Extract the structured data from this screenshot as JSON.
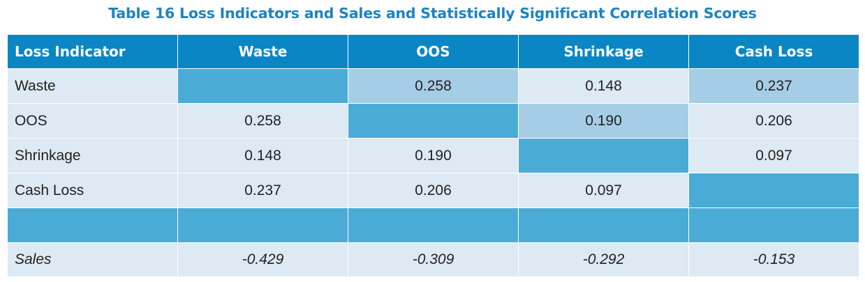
{
  "table": {
    "caption": "Table 16 Loss Indicators and Sales and Statistically Significant Correlation Scores",
    "headers": [
      "Loss Indicator",
      "Waste",
      "OOS",
      "Shrinkage",
      "Cash Loss"
    ],
    "rows": [
      {
        "label": "Waste",
        "values": [
          "",
          "0.258",
          "0.148",
          "0.237"
        ]
      },
      {
        "label": "OOS",
        "values": [
          "0.258",
          "",
          "0.190",
          "0.206"
        ]
      },
      {
        "label": "Shrinkage",
        "values": [
          "0.148",
          "0.190",
          "",
          "0.097"
        ]
      },
      {
        "label": "Cash Loss",
        "values": [
          "0.237",
          "0.206",
          "0.097",
          ""
        ]
      },
      {
        "label": "",
        "values": [
          "",
          "",
          "",
          ""
        ]
      },
      {
        "label": "Sales",
        "values": [
          "-0.429",
          "-0.309",
          "-0.292",
          "-0.153"
        ]
      }
    ]
  },
  "colors": {
    "header": "#0a86c5",
    "diagonal": "#4aabd6",
    "highlight": "#a6cde6",
    "cell": "#dde9f3",
    "caption": "#1b83c3"
  }
}
